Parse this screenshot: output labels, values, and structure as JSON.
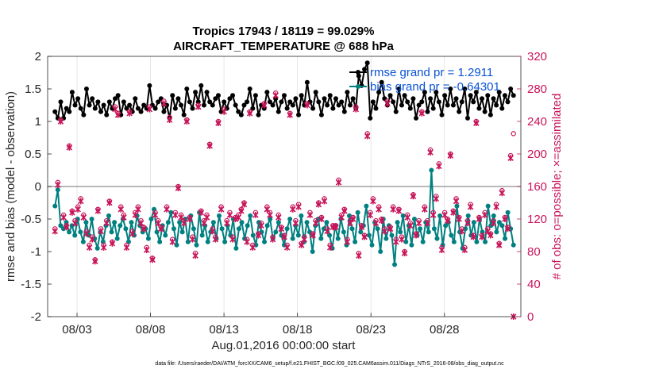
{
  "chart_data": {
    "type": "line",
    "title": "Tropics 17943 / 18119 = 99.029%",
    "subtitle": "AIRCRAFT_TEMPERATURE @ 688 hPa",
    "xlabel": "Aug.01,2016 00:00:00 start",
    "ylabel_left": "rmse and bias (model - observation)",
    "ylabel_right": "# of obs: o=possible; ×=assimilated",
    "ylim_left": [
      -2,
      2
    ],
    "ylim_right": [
      0,
      320
    ],
    "yticks_left": [
      "2",
      "1.5",
      "1",
      "0.5",
      "0",
      "-0.5",
      "-1",
      "-1.5",
      "-2"
    ],
    "yticks_right": [
      "320",
      "280",
      "240",
      "200",
      "160",
      "120",
      "80",
      "40",
      "0"
    ],
    "xlim_days": [
      1,
      33.2
    ],
    "xticks": [
      {
        "day": 3,
        "label": "08/03"
      },
      {
        "day": 8,
        "label": "08/08"
      },
      {
        "day": 13,
        "label": "08/13"
      },
      {
        "day": 18,
        "label": "08/18"
      },
      {
        "day": 23,
        "label": "08/23"
      },
      {
        "day": 28,
        "label": "08/28"
      }
    ],
    "legend": [
      {
        "label": "rmse grand pr = 1.2911",
        "color": "#000000"
      },
      {
        "label": "bias grand pr = -0.64301",
        "color": "#008080"
      }
    ],
    "series": [
      {
        "name": "rmse",
        "color": "#000000",
        "axis": "left",
        "values": [
          1.15,
          1.05,
          1.3,
          1.05,
          1.2,
          1.15,
          1.45,
          1.25,
          1.35,
          1.2,
          1.1,
          1.5,
          1.25,
          1.35,
          1.2,
          1.3,
          1.15,
          1.25,
          1.1,
          1.3,
          1.2,
          1.35,
          1.4,
          1.1,
          1.3,
          1.2,
          1.25,
          1.15,
          1.35,
          1.2,
          1.15,
          1.25,
          1.2,
          1.55,
          1.25,
          1.2,
          1.3,
          1.35,
          1.15,
          1.25,
          1.05,
          1.4,
          1.2,
          1.35,
          1.25,
          1.1,
          1.5,
          1.3,
          1.2,
          1.45,
          1.3,
          1.55,
          1.25,
          1.45,
          1.3,
          1.25,
          1.35,
          1.4,
          1.15,
          1.3,
          1.2,
          1.35,
          1.4,
          1.25,
          1.15,
          1.1,
          1.25,
          1.3,
          1.5,
          1.2,
          1.4,
          1.1,
          1.25,
          1.2,
          1.45,
          1.3,
          1.25,
          1.35,
          1.15,
          1.3,
          1.4,
          1.2,
          1.3,
          1.25,
          1.35,
          1.1,
          1.4,
          1.25,
          1.6,
          1.3,
          1.2,
          1.45,
          1.3,
          1.1,
          1.35,
          1.25,
          1.4,
          1.2,
          1.35,
          1.25,
          1.3,
          1.15,
          1.45,
          1.25,
          1.35,
          1.2,
          1.7,
          1.55,
          1.8,
          1.9,
          1.05,
          1.3,
          1.2,
          1.45,
          1.6,
          1.35,
          1.25,
          1.4,
          1.3,
          1.15,
          1.5,
          1.25,
          1.4,
          1.3,
          1.2,
          1.35,
          1.05,
          1.25,
          1.3,
          1.45,
          1.15,
          1.35,
          1.2,
          1.45,
          1.3,
          1.1,
          1.4,
          1.25,
          1.5,
          1.25,
          1.35,
          1.15,
          1.3,
          1.5,
          1.05,
          1.4,
          1.3,
          1.45,
          1.2,
          1.35,
          1.15,
          1.4,
          1.1,
          1.35,
          1.25,
          1.45,
          1.2,
          1.4,
          1.3,
          1.5,
          1.4
        ]
      },
      {
        "name": "bias",
        "color": "#008080",
        "axis": "left",
        "values": [
          -0.3,
          -0.05,
          -0.6,
          -0.65,
          -0.55,
          -0.7,
          -0.6,
          -0.75,
          -0.5,
          -0.7,
          -0.85,
          -0.55,
          -0.75,
          -0.5,
          -0.8,
          -0.95,
          -0.7,
          -0.85,
          -0.6,
          -0.45,
          -0.7,
          -0.55,
          -0.8,
          -0.6,
          -0.5,
          -0.65,
          -0.85,
          -0.55,
          -0.75,
          -0.45,
          -0.6,
          -0.7,
          -0.65,
          -0.8,
          -0.5,
          -0.35,
          -0.7,
          -0.85,
          -0.6,
          -0.75,
          -0.55,
          -0.4,
          -0.65,
          -0.9,
          -0.55,
          -0.7,
          -0.5,
          -0.85,
          -0.45,
          -0.65,
          -0.9,
          -0.4,
          -0.75,
          -0.6,
          -0.85,
          -0.7,
          -0.55,
          -0.8,
          -0.45,
          -0.65,
          -0.85,
          -0.6,
          -0.75,
          -0.5,
          -0.95,
          -0.65,
          -0.55,
          -0.8,
          -0.6,
          -0.45,
          -0.75,
          -0.9,
          -0.55,
          -0.7,
          -0.85,
          -0.6,
          -0.5,
          -0.8,
          -0.7,
          -0.55,
          -0.75,
          -0.9,
          -0.65,
          -0.5,
          -0.8,
          -0.6,
          -0.75,
          -0.45,
          -0.85,
          -0.55,
          -0.7,
          -1.0,
          -0.6,
          -0.5,
          -0.8,
          -0.65,
          -0.55,
          -0.75,
          -0.95,
          -0.6,
          -0.8,
          -0.5,
          -0.7,
          -0.9,
          -0.45,
          -0.65,
          -0.85,
          -0.4,
          -0.7,
          -0.6,
          -0.3,
          -0.75,
          -0.9,
          -0.55,
          -0.65,
          -1.0,
          -0.5,
          -0.8,
          -0.6,
          -0.75,
          -1.2,
          -0.55,
          -0.7,
          -0.45,
          -0.85,
          -0.6,
          -0.9,
          -0.5,
          -0.75,
          -0.65,
          -0.85,
          -0.55,
          -0.7,
          0.25,
          -0.65,
          -0.8,
          -0.45,
          -0.9,
          -0.6,
          -0.55,
          -0.75,
          -0.85,
          -0.3,
          -0.7,
          -0.95,
          -0.65,
          -0.45,
          -0.75,
          -0.55,
          -0.85,
          -0.5,
          -0.7,
          -0.85,
          -0.3,
          -0.6,
          -0.45,
          -0.7,
          -0.55,
          -0.6,
          -0.8,
          -0.4,
          -0.65,
          -0.9
        ]
      },
      {
        "name": "obs_possible",
        "marker": "o",
        "color": "#c8155a",
        "axis": "right",
        "values": [
          108,
          165,
          242,
          125,
          112,
          210,
          130,
          118,
          135,
          145,
          125,
          105,
          88,
          98,
          70,
          132,
          108,
          88,
          118,
          142,
          92,
          258,
          250,
          135,
          125,
          88,
          252,
          105,
          128,
          135,
          118,
          110,
          85,
          258,
          72,
          128,
          118,
          110,
          265,
          135,
          245,
          95,
          128,
          160,
          125,
          118,
          242,
          122,
          98,
          78,
          260,
          130,
          118,
          125,
          212,
          108,
          98,
          240,
          135,
          255,
          118,
          128,
          98,
          122,
          125,
          132,
          140,
          95,
          252,
          88,
          128,
          102,
          115,
          262,
          135,
          128,
          98,
          275,
          125,
          110,
          100,
          88,
          250,
          135,
          118,
          138,
          90,
          98,
          262,
          128,
          102,
          118,
          140,
          122,
          145,
          108,
          88,
          112,
          112,
          168,
          125,
          132,
          95,
          118,
          122,
          258,
          78,
          112,
          100,
          225,
          128,
          145,
          118,
          135,
          120,
          108,
          265,
          110,
          135,
          95,
          132,
          98,
          80,
          125,
          115,
          150,
          102,
          118,
          252,
          135,
          118,
          205,
          128,
          148,
          188,
          85,
          128,
          120,
          200,
          130,
          145,
          122,
          108,
          85,
          118,
          138,
          100,
          240,
          122,
          100,
          128,
          108,
          102,
          118,
          138,
          90,
          155,
          122,
          110,
          198,
          225
        ]
      },
      {
        "name": "obs_assimilated",
        "marker": "x",
        "color": "#c8155a",
        "axis": "right",
        "values": [
          105,
          162,
          240,
          122,
          110,
          208,
          128,
          115,
          132,
          142,
          122,
          102,
          85,
          95,
          68,
          130,
          105,
          85,
          115,
          140,
          90,
          255,
          248,
          132,
          122,
          85,
          250,
          102,
          125,
          132,
          115,
          108,
          82,
          255,
          70,
          125,
          115,
          108,
          262,
          132,
          242,
          92,
          125,
          158,
          122,
          115,
          240,
          120,
          95,
          75,
          258,
          128,
          115,
          122,
          210,
          105,
          95,
          238,
          132,
          252,
          115,
          125,
          95,
          120,
          122,
          130,
          138,
          92,
          250,
          85,
          125,
          100,
          112,
          260,
          132,
          125,
          95,
          272,
          122,
          108,
          98,
          85,
          248,
          132,
          115,
          135,
          88,
          95,
          260,
          125,
          100,
          115,
          138,
          120,
          142,
          105,
          85,
          110,
          110,
          165,
          122,
          130,
          92,
          115,
          120,
          255,
          75,
          110,
          98,
          222,
          125,
          142,
          115,
          132,
          118,
          105,
          262,
          108,
          132,
          92,
          130,
          95,
          78,
          122,
          112,
          148,
          100,
          115,
          250,
          132,
          115,
          202,
          125,
          145,
          185,
          82,
          125,
          118,
          198,
          128,
          142,
          120,
          105,
          82,
          115,
          135,
          98,
          238,
          120,
          98,
          125,
          105,
          100,
          115,
          135,
          88,
          152,
          120,
          108,
          195,
          0
        ]
      }
    ]
  },
  "footnote": "data file: /Users/raeder/DAI/ATM_forcXX/CAM6_setup/f.e21.FHIST_BGC.f09_025.CAM6assim.011/Diags_NTrS_2016-08/obs_diag_output.nc"
}
